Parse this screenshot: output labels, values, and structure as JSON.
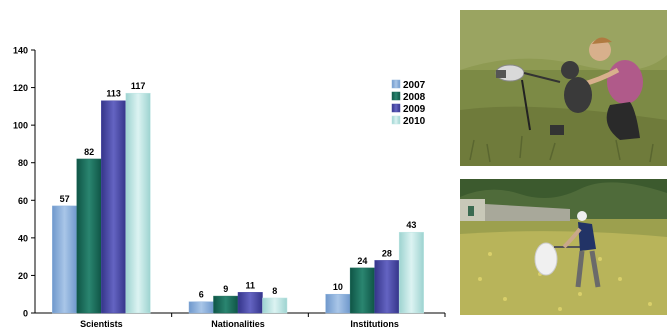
{
  "chart_data": {
    "type": "bar",
    "title": "",
    "xlabel": "",
    "ylabel": "",
    "categories": [
      "Scientists",
      "Nationalities",
      "Institutions"
    ],
    "series": [
      {
        "name": "2007",
        "values": [
          57,
          6,
          10
        ],
        "color": "#8fb3dc"
      },
      {
        "name": "2008",
        "values": [
          82,
          9,
          24
        ],
        "color": "#1f6b5a"
      },
      {
        "name": "2009",
        "values": [
          113,
          11,
          28
        ],
        "color": "#4b4ba6"
      },
      {
        "name": "2010",
        "values": [
          117,
          8,
          43
        ],
        "color": "#bfe6e4"
      }
    ],
    "ylim": [
      0,
      140
    ],
    "yticks": [
      0,
      20,
      40,
      60,
      80,
      100,
      120,
      140
    ],
    "grid": false,
    "legend_position": "right"
  },
  "photos": [
    {
      "name": "researcher-with-microphone-photo",
      "icon": "field-recording-photo"
    },
    {
      "name": "researcher-with-net-photo",
      "icon": "butterfly-net-photo"
    }
  ]
}
